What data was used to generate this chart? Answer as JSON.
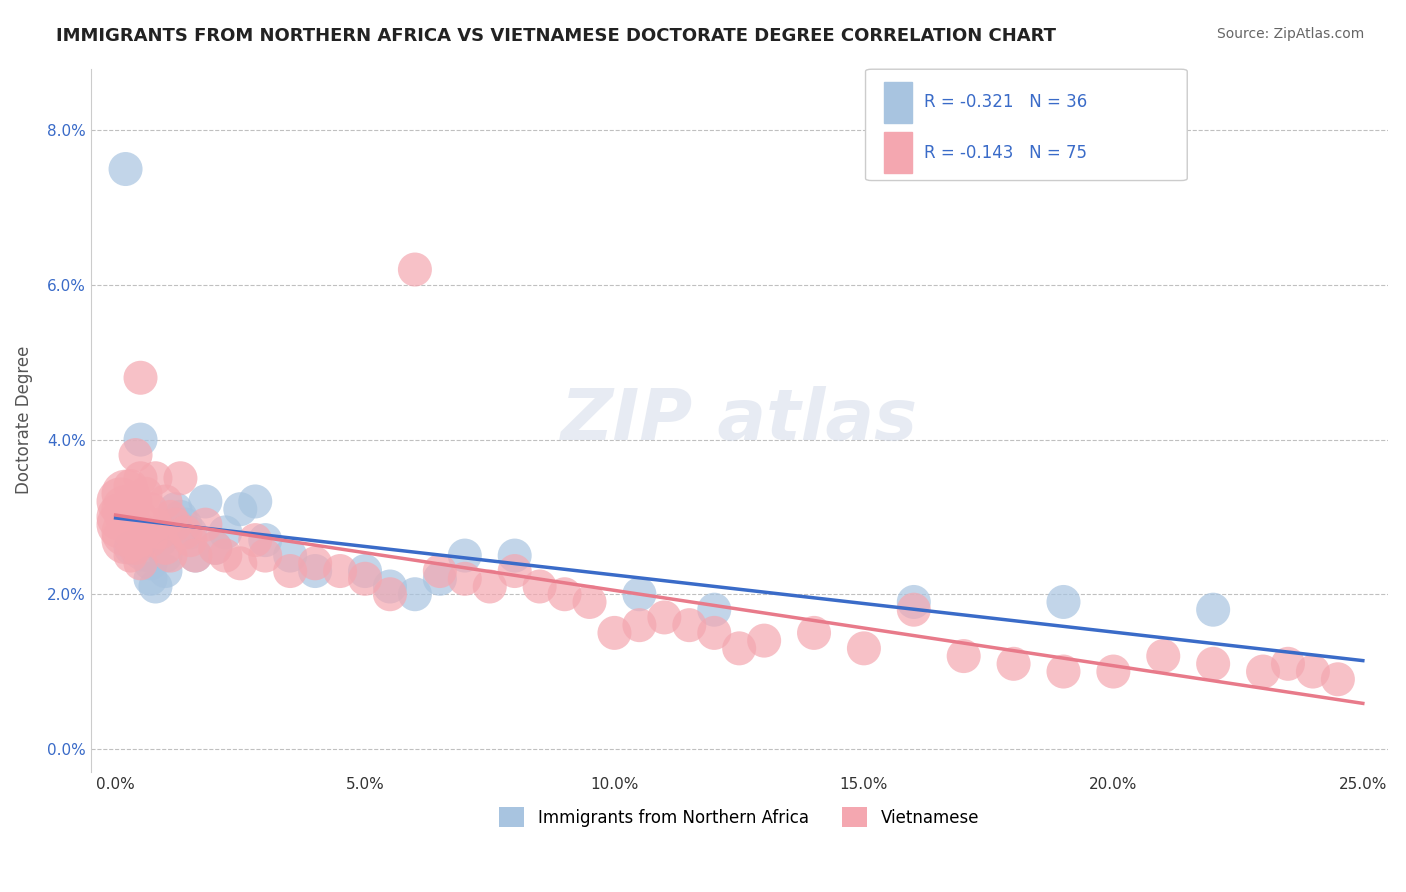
{
  "title": "IMMIGRANTS FROM NORTHERN AFRICA VS VIETNAMESE DOCTORATE DEGREE CORRELATION CHART",
  "source": "Source: ZipAtlas.com",
  "ylabel": "Doctorate Degree",
  "xlabel_ticks": [
    "0.0%",
    "5.0%",
    "10.0%",
    "15.0%",
    "20.0%",
    "25.0%"
  ],
  "xlabel_vals": [
    0.0,
    5.0,
    10.0,
    15.0,
    20.0,
    25.0
  ],
  "ylabel_ticks": [
    "0.0%",
    "2.0%",
    "4.0%",
    "6.0%",
    "8.0%"
  ],
  "ylabel_vals": [
    0.0,
    2.0,
    4.0,
    6.0,
    8.0
  ],
  "legend_r1": "R = -0.321   N = 36",
  "legend_r2": "R = -0.143   N = 75",
  "legend_label1": "Immigrants from Northern Africa",
  "legend_label2": "Vietnamese",
  "color_blue": "#a8c4e0",
  "color_pink": "#f4a7b0",
  "color_blue_line": "#3a6bc8",
  "color_pink_line": "#e87a8a",
  "background": "#ffffff",
  "watermark": "ZIPatlas",
  "blue_points": [
    [
      0.2,
      7.5
    ],
    [
      0.3,
      2.6
    ],
    [
      0.5,
      4.0
    ],
    [
      0.6,
      2.6
    ],
    [
      0.7,
      2.4
    ],
    [
      0.7,
      2.2
    ],
    [
      0.8,
      2.7
    ],
    [
      0.8,
      2.1
    ],
    [
      0.9,
      2.7
    ],
    [
      1.0,
      2.5
    ],
    [
      1.0,
      2.3
    ],
    [
      1.1,
      2.8
    ],
    [
      1.2,
      3.1
    ],
    [
      1.3,
      3.0
    ],
    [
      1.4,
      2.9
    ],
    [
      1.5,
      2.8
    ],
    [
      1.6,
      2.5
    ],
    [
      1.8,
      3.2
    ],
    [
      2.0,
      2.6
    ],
    [
      2.2,
      2.8
    ],
    [
      2.5,
      3.1
    ],
    [
      2.8,
      3.2
    ],
    [
      3.0,
      2.7
    ],
    [
      3.5,
      2.5
    ],
    [
      4.0,
      2.3
    ],
    [
      5.0,
      2.3
    ],
    [
      5.5,
      2.1
    ],
    [
      6.0,
      2.0
    ],
    [
      6.5,
      2.2
    ],
    [
      7.0,
      2.5
    ],
    [
      8.0,
      2.5
    ],
    [
      10.5,
      2.0
    ],
    [
      12.0,
      1.8
    ],
    [
      16.0,
      1.9
    ],
    [
      19.0,
      1.9
    ],
    [
      22.0,
      1.8
    ]
  ],
  "pink_points": [
    [
      0.1,
      3.2
    ],
    [
      0.1,
      3.0
    ],
    [
      0.1,
      2.9
    ],
    [
      0.2,
      3.3
    ],
    [
      0.2,
      3.1
    ],
    [
      0.2,
      2.8
    ],
    [
      0.2,
      2.7
    ],
    [
      0.3,
      3.4
    ],
    [
      0.3,
      3.0
    ],
    [
      0.3,
      2.8
    ],
    [
      0.3,
      2.5
    ],
    [
      0.4,
      3.8
    ],
    [
      0.4,
      3.2
    ],
    [
      0.4,
      2.9
    ],
    [
      0.4,
      2.6
    ],
    [
      0.5,
      4.8
    ],
    [
      0.5,
      3.5
    ],
    [
      0.5,
      3.0
    ],
    [
      0.5,
      2.7
    ],
    [
      0.5,
      2.4
    ],
    [
      0.6,
      3.3
    ],
    [
      0.6,
      2.8
    ],
    [
      0.7,
      3.1
    ],
    [
      0.7,
      2.7
    ],
    [
      0.8,
      3.5
    ],
    [
      0.8,
      2.9
    ],
    [
      0.9,
      2.8
    ],
    [
      1.0,
      3.2
    ],
    [
      1.0,
      2.6
    ],
    [
      1.1,
      3.0
    ],
    [
      1.1,
      2.5
    ],
    [
      1.2,
      2.9
    ],
    [
      1.3,
      3.5
    ],
    [
      1.4,
      2.8
    ],
    [
      1.5,
      2.7
    ],
    [
      1.6,
      2.5
    ],
    [
      1.8,
      2.9
    ],
    [
      2.0,
      2.6
    ],
    [
      2.2,
      2.5
    ],
    [
      2.5,
      2.4
    ],
    [
      2.8,
      2.7
    ],
    [
      3.0,
      2.5
    ],
    [
      3.5,
      2.3
    ],
    [
      4.0,
      2.4
    ],
    [
      4.5,
      2.3
    ],
    [
      5.0,
      2.2
    ],
    [
      5.5,
      2.0
    ],
    [
      6.0,
      6.2
    ],
    [
      6.5,
      2.3
    ],
    [
      7.0,
      2.2
    ],
    [
      7.5,
      2.1
    ],
    [
      8.0,
      2.3
    ],
    [
      8.5,
      2.1
    ],
    [
      9.0,
      2.0
    ],
    [
      9.5,
      1.9
    ],
    [
      10.0,
      1.5
    ],
    [
      10.5,
      1.6
    ],
    [
      11.0,
      1.7
    ],
    [
      11.5,
      1.6
    ],
    [
      12.0,
      1.5
    ],
    [
      12.5,
      1.3
    ],
    [
      13.0,
      1.4
    ],
    [
      14.0,
      1.5
    ],
    [
      15.0,
      1.3
    ],
    [
      16.0,
      1.8
    ],
    [
      17.0,
      1.2
    ],
    [
      18.0,
      1.1
    ],
    [
      19.0,
      1.0
    ],
    [
      20.0,
      1.0
    ],
    [
      21.0,
      1.2
    ],
    [
      22.0,
      1.1
    ],
    [
      23.0,
      1.0
    ],
    [
      23.5,
      1.1
    ],
    [
      24.0,
      1.0
    ],
    [
      24.5,
      0.9
    ]
  ],
  "blue_sizes": [
    30,
    30,
    30,
    60,
    30,
    30,
    30,
    30,
    30,
    30,
    30,
    30,
    30,
    30,
    30,
    30,
    30,
    30,
    30,
    30,
    30,
    30,
    30,
    30,
    30,
    30,
    30,
    30,
    30,
    30,
    30,
    30,
    30,
    30,
    30,
    30
  ],
  "pink_sizes": [
    60,
    60,
    60,
    60,
    60,
    60,
    60,
    30,
    30,
    30,
    30,
    30,
    30,
    30,
    30,
    30,
    30,
    30,
    30,
    30,
    30,
    30,
    30,
    30,
    30,
    30,
    30,
    30,
    30,
    30,
    30,
    30,
    30,
    30,
    30,
    30,
    30,
    30,
    30,
    30,
    30,
    30,
    30,
    30,
    30,
    30,
    30,
    30,
    30,
    30,
    30,
    30,
    30,
    30,
    30,
    30,
    30,
    30,
    30,
    30,
    30,
    30,
    30,
    30,
    30,
    30,
    30,
    30,
    30,
    30,
    30,
    30,
    30,
    30,
    30
  ]
}
